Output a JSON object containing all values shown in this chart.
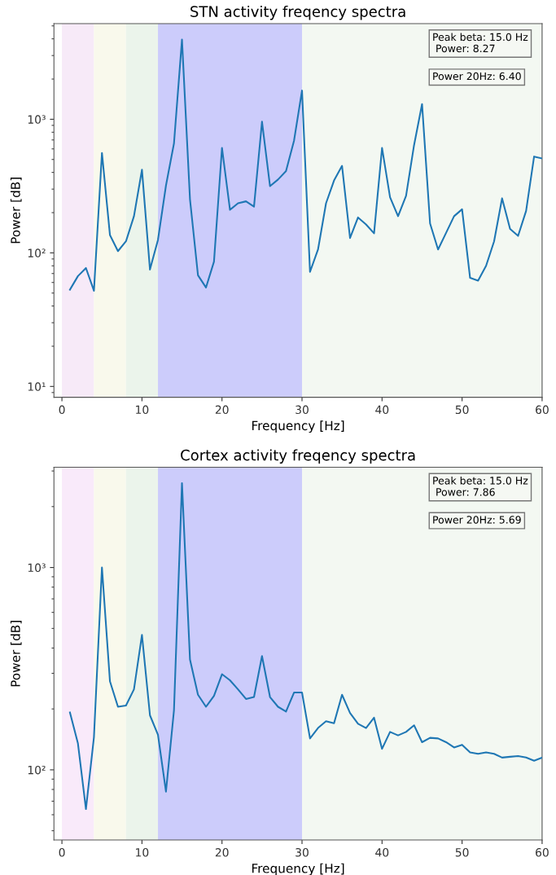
{
  "chart_data": [
    {
      "type": "line",
      "title": "STN activity freqency spectra",
      "xlabel": "Frequency [Hz]",
      "ylabel": "Power [dB]",
      "log": "y",
      "grid": false,
      "xlim": [
        -1,
        60
      ],
      "xticks": [
        0,
        10,
        20,
        30,
        40,
        50,
        60
      ],
      "ylim": [
        8.3,
        5200
      ],
      "yticks": [
        {
          "value": 10,
          "label": "10¹"
        },
        {
          "value": 100,
          "label": "10²"
        },
        {
          "value": 1000,
          "label": "10³"
        }
      ],
      "x": [
        1,
        2,
        3,
        4,
        5,
        6,
        7,
        8,
        9,
        10,
        11,
        12,
        13,
        14,
        15,
        16,
        17,
        18,
        19,
        20,
        21,
        22,
        23,
        24,
        25,
        26,
        27,
        28,
        29,
        30,
        31,
        32,
        33,
        34,
        35,
        36,
        37,
        38,
        39,
        40,
        41,
        42,
        43,
        44,
        45,
        46,
        47,
        48,
        49,
        50,
        51,
        52,
        53,
        54,
        55,
        56,
        57,
        58,
        59,
        60
      ],
      "series": [
        {
          "color": "#1f77b4",
          "values": [
            53,
            67,
            77,
            52,
            560,
            136,
            103,
            122,
            188,
            419,
            75,
            125,
            319,
            660,
            3950,
            252,
            68,
            55,
            86,
            610,
            210,
            235,
            243,
            222,
            960,
            316,
            354,
            409,
            691,
            1640,
            72,
            106,
            235,
            348,
            448,
            129,
            184,
            163,
            140,
            610,
            261,
            188,
            267,
            640,
            1300,
            166,
            106,
            141,
            188,
            212,
            65,
            62,
            80,
            122,
            256,
            151,
            134,
            206,
            526,
            509
          ]
        }
      ],
      "bands": [
        {
          "axis": "x",
          "from": 0,
          "to": 4,
          "color": "#f7eaf8"
        },
        {
          "axis": "x",
          "from": 4,
          "to": 8,
          "color": "#f9f9ec"
        },
        {
          "axis": "x",
          "from": 8,
          "to": 12,
          "color": "#ebf4eb"
        },
        {
          "axis": "x",
          "from": 12,
          "to": 30,
          "color": "#ccccfb"
        },
        {
          "axis": "x",
          "from": 30,
          "to": 60,
          "color": "#f3f8f2"
        }
      ],
      "annotations": [
        "Peak beta: 15.0 Hz\n Power: 8.27",
        "Power 20Hz: 6.40"
      ]
    },
    {
      "type": "line",
      "title": "Cortex activity freqency spectra",
      "xlabel": "Frequency [Hz]",
      "ylabel": "Power [dB]",
      "log": "y",
      "grid": false,
      "xlim": [
        -1,
        60
      ],
      "xticks": [
        0,
        10,
        20,
        30,
        40,
        50,
        60
      ],
      "ylim": [
        45,
        3130
      ],
      "yticks": [
        {
          "value": 100,
          "label": "10²"
        },
        {
          "value": 1000,
          "label": "10³"
        }
      ],
      "x": [
        1,
        2,
        3,
        4,
        5,
        6,
        7,
        8,
        9,
        10,
        11,
        12,
        13,
        14,
        15,
        16,
        17,
        18,
        19,
        20,
        21,
        22,
        23,
        24,
        25,
        26,
        27,
        28,
        29,
        30,
        31,
        32,
        33,
        34,
        35,
        36,
        37,
        38,
        39,
        40,
        41,
        42,
        43,
        44,
        45,
        46,
        47,
        48,
        49,
        50,
        51,
        52,
        53,
        54,
        55,
        56,
        57,
        58,
        59,
        60
      ],
      "series": [
        {
          "color": "#1f77b4",
          "values": [
            192,
            135,
            64,
            145,
            1000,
            274,
            205,
            208,
            250,
            464,
            186,
            149,
            78,
            197,
            2610,
            351,
            235,
            205,
            232,
            297,
            277,
            250,
            224,
            229,
            365,
            229,
            205,
            194,
            241,
            241,
            143,
            161,
            174,
            170,
            235,
            191,
            169,
            161,
            181,
            127,
            154,
            148,
            154,
            166,
            137,
            144,
            143,
            137,
            129,
            133,
            122,
            120,
            122,
            120,
            115,
            116,
            117,
            115,
            111,
            115
          ]
        }
      ],
      "bands": [
        {
          "axis": "x",
          "from": 0,
          "to": 4,
          "color": "#f9eafa"
        },
        {
          "axis": "x",
          "from": 4,
          "to": 8,
          "color": "#f9f9ec"
        },
        {
          "axis": "x",
          "from": 8,
          "to": 12,
          "color": "#ebf4eb"
        },
        {
          "axis": "x",
          "from": 12,
          "to": 30,
          "color": "#ccccfb"
        },
        {
          "axis": "x",
          "from": 30,
          "to": 60,
          "color": "#f3f8f2"
        }
      ],
      "annotations": [
        "Peak beta: 15.0 Hz\n Power: 7.86",
        "Power 20Hz: 5.69"
      ]
    }
  ]
}
